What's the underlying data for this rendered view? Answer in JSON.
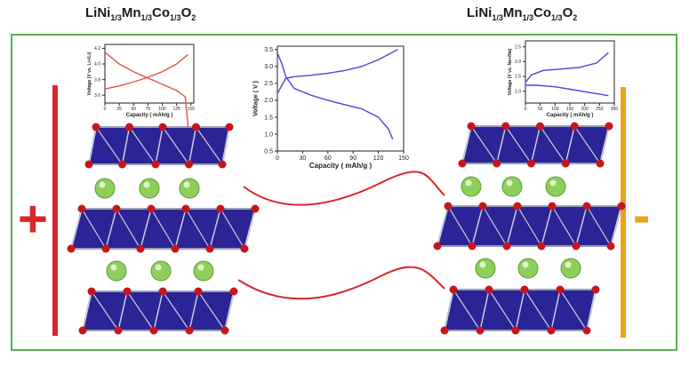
{
  "formula_left": {
    "base": "LiNi",
    "s1": "1/3",
    "mid1": "Mn",
    "s2": "1/3",
    "mid2": "Co",
    "s3": "1/3",
    "tail": "O",
    "s4": "2"
  },
  "formula_right": {
    "base": "LiNi",
    "s1": "1/3",
    "mid1": "Mn",
    "s2": "1/3",
    "mid2": "Co",
    "s3": "1/3",
    "tail": "O",
    "s4": "2"
  },
  "signs": {
    "plus": "+",
    "minus": "-"
  },
  "colors": {
    "frame": "#57b04d",
    "positive_electrode": "#d9262a",
    "negative_electrode": "#e8a21c",
    "octahedron": "#2b2496",
    "oxygen": "#c7161b",
    "lithium": "#8ccf5a",
    "curve_blue": "#4a46d8",
    "curve_red": "#e2544d"
  },
  "center_plot": {
    "ylabel": "Voltage ( V )",
    "xlabel": "Capacity ( mAh/g )",
    "yticks": [
      "0.5",
      "1.0",
      "1.5",
      "2.0",
      "2.5",
      "3.0",
      "3.5"
    ],
    "xticks": [
      "0",
      "30",
      "60",
      "90",
      "120",
      "150"
    ],
    "charge": [
      [
        0,
        2.2
      ],
      [
        10,
        2.65
      ],
      [
        20,
        2.7
      ],
      [
        40,
        2.74
      ],
      [
        60,
        2.8
      ],
      [
        80,
        2.88
      ],
      [
        100,
        3.0
      ],
      [
        120,
        3.2
      ],
      [
        143,
        3.5
      ]
    ],
    "discharge": [
      [
        0,
        3.4
      ],
      [
        5,
        3.1
      ],
      [
        10,
        2.7
      ],
      [
        20,
        2.35
      ],
      [
        40,
        2.15
      ],
      [
        60,
        2.0
      ],
      [
        80,
        1.87
      ],
      [
        100,
        1.75
      ],
      [
        120,
        1.5
      ],
      [
        132,
        1.15
      ],
      [
        137,
        0.85
      ]
    ]
  },
  "left_plot": {
    "ylabel": "Voltage (V vs. Li+/Li)",
    "xlabel": "Capacity ( mAh/g )",
    "yticks": [
      "3.6",
      "3.8",
      "4.0",
      "4.2"
    ],
    "xticks": [
      "0",
      "25",
      "50",
      "75",
      "100",
      "125",
      "150"
    ],
    "charge": [
      [
        0,
        3.68
      ],
      [
        25,
        3.72
      ],
      [
        50,
        3.77
      ],
      [
        75,
        3.83
      ],
      [
        100,
        3.9
      ],
      [
        125,
        4.0
      ],
      [
        145,
        4.12
      ]
    ],
    "discharge": [
      [
        0,
        4.15
      ],
      [
        25,
        4.0
      ],
      [
        50,
        3.9
      ],
      [
        75,
        3.82
      ],
      [
        100,
        3.74
      ],
      [
        125,
        3.66
      ],
      [
        140,
        3.58
      ],
      [
        145,
        3.2
      ]
    ]
  },
  "right_plot": {
    "ylabel": "Voltage (V vs. Na+/Na)",
    "xlabel": "Capacity ( mAh/g )",
    "yticks": [
      "1.0",
      "1.5",
      "2.0",
      "2.5"
    ],
    "xticks": [
      "0",
      "50",
      "100",
      "150",
      "200",
      "250",
      "300"
    ],
    "charge": [
      [
        0,
        1.3
      ],
      [
        20,
        1.55
      ],
      [
        60,
        1.7
      ],
      [
        120,
        1.75
      ],
      [
        180,
        1.8
      ],
      [
        240,
        1.95
      ],
      [
        280,
        2.3
      ]
    ],
    "discharge": [
      [
        0,
        1.2
      ],
      [
        40,
        1.2
      ],
      [
        100,
        1.15
      ],
      [
        160,
        1.05
      ],
      [
        220,
        0.95
      ],
      [
        280,
        0.85
      ]
    ]
  }
}
